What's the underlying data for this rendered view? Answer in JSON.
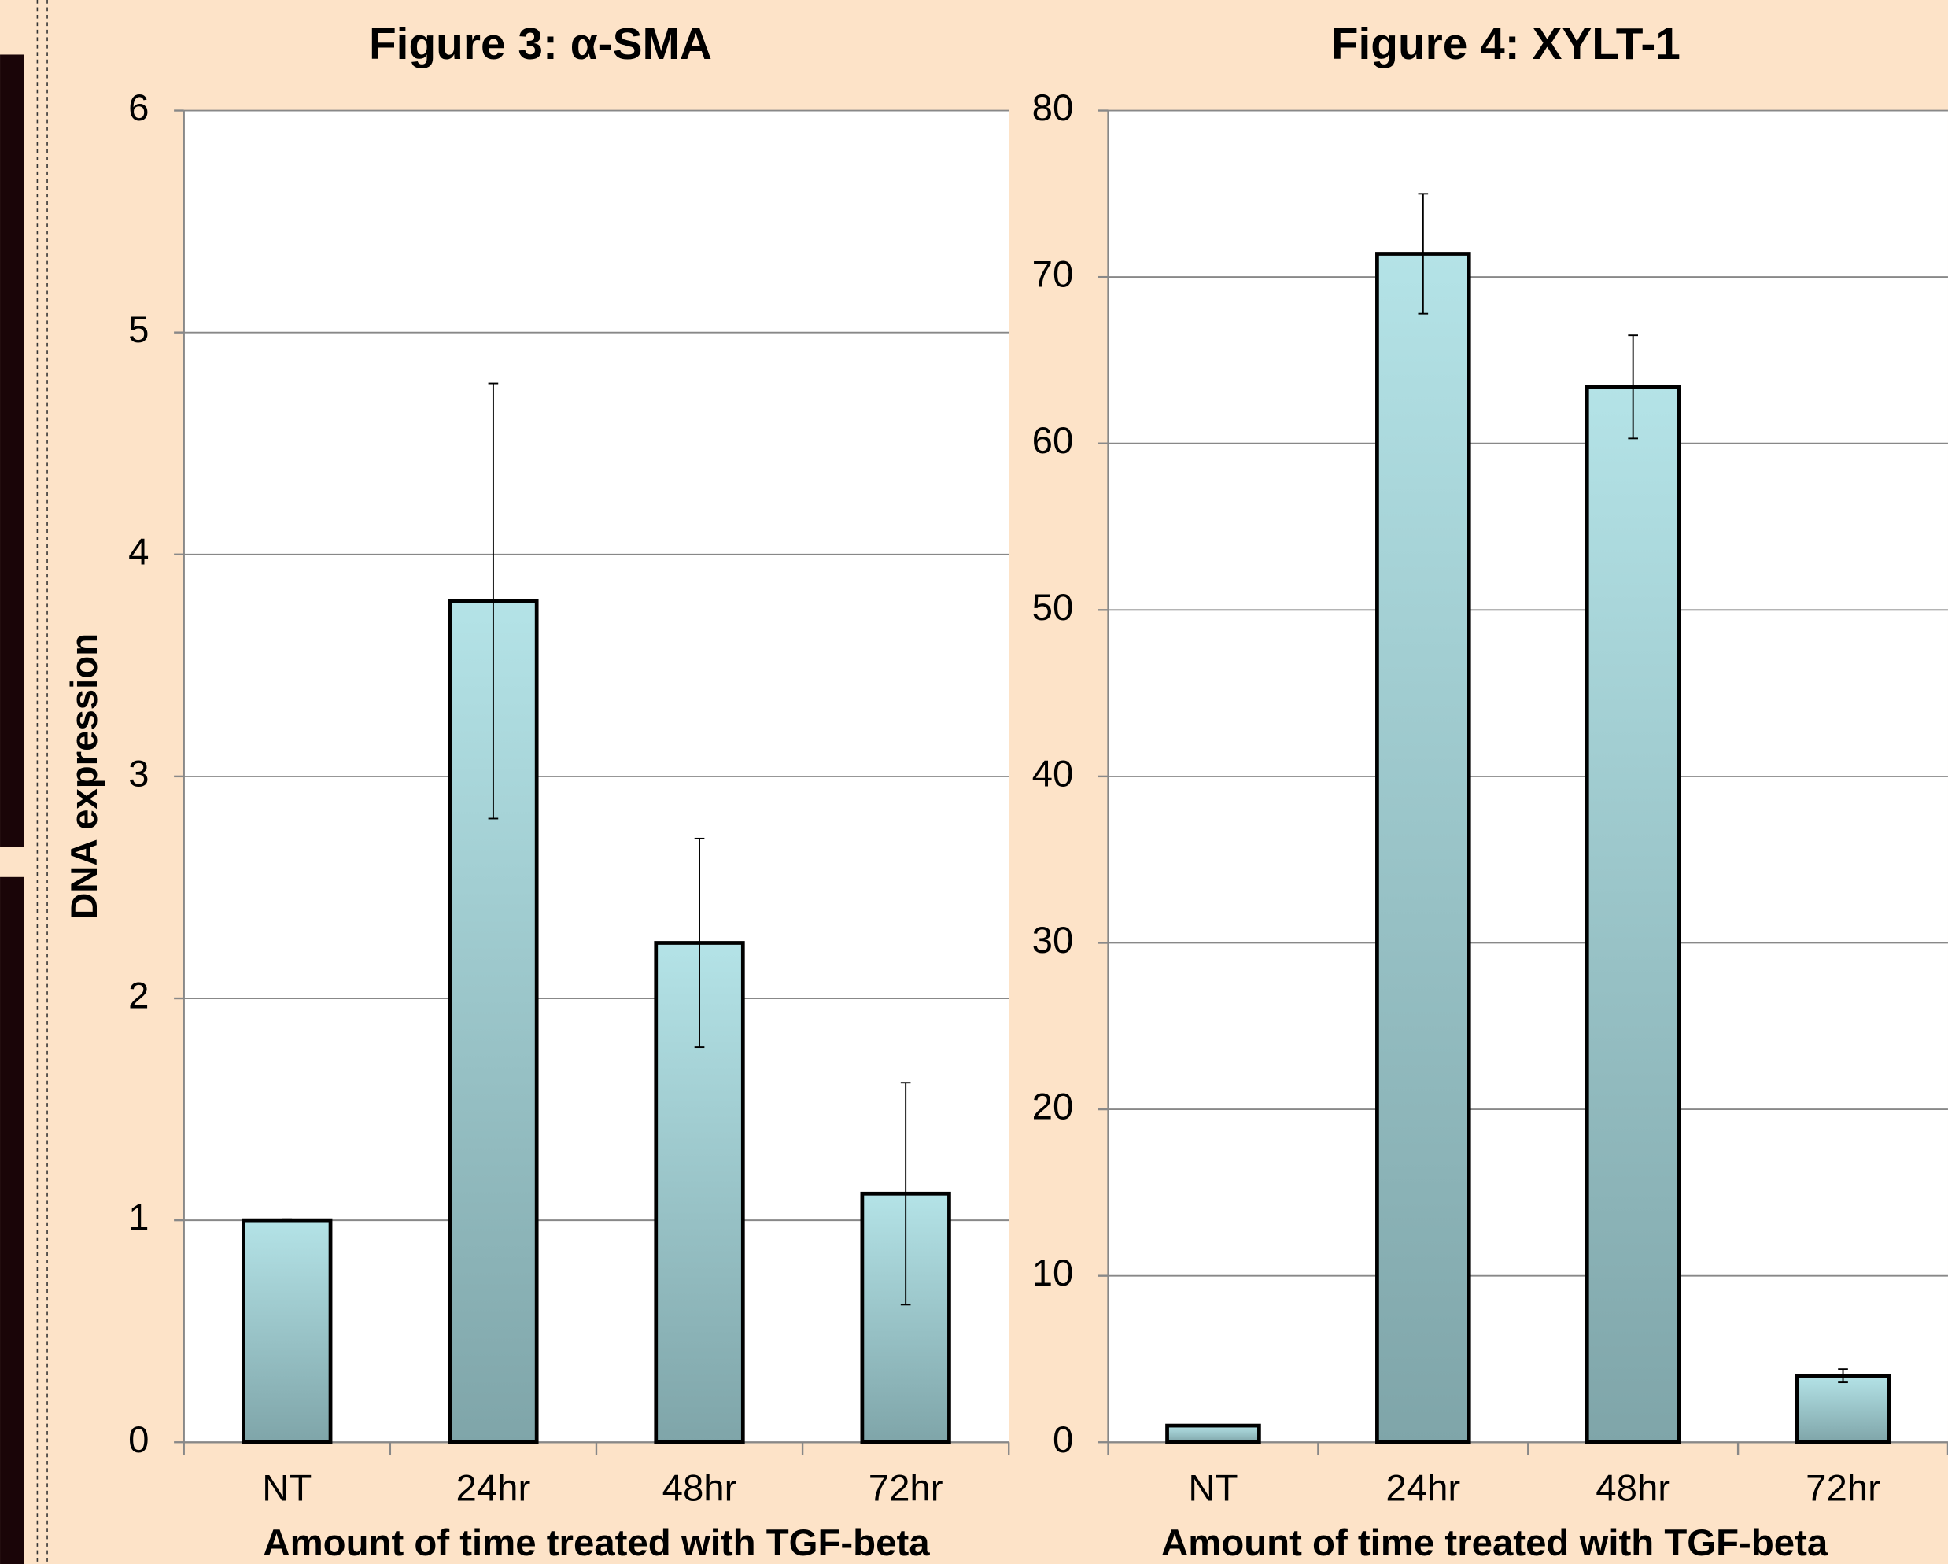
{
  "chart_data": [
    {
      "type": "bar",
      "title": "Figure 3: α-SMA",
      "y_label": "DNA expression",
      "x_label": "Amount of time treated with TGF-beta",
      "categories": [
        "NT",
        "24hr",
        "48hr",
        "72hr"
      ],
      "values": [
        1.0,
        3.79,
        2.25,
        1.12
      ],
      "errors": [
        0.005,
        0.98,
        0.47,
        0.5
      ],
      "color": "#a9d9de",
      "ylim": [
        0,
        6
      ],
      "yticks": [
        0,
        1,
        2,
        3,
        4,
        5,
        6
      ],
      "grid": true
    },
    {
      "type": "bar",
      "title": "Figure 4: XYLT-1",
      "x_label": "Amount of time treated with TGF-beta",
      "categories": [
        "NT",
        "24hr",
        "48hr",
        "72hr"
      ],
      "values": [
        1.0,
        71.4,
        63.4,
        4.0
      ],
      "errors": [
        0.05,
        3.6,
        3.1,
        0.4
      ],
      "color": "#a9d9de",
      "ylim": [
        0,
        80
      ],
      "yticks": [
        0,
        10,
        20,
        30,
        40,
        50,
        60,
        70,
        80
      ],
      "grid": true
    }
  ]
}
